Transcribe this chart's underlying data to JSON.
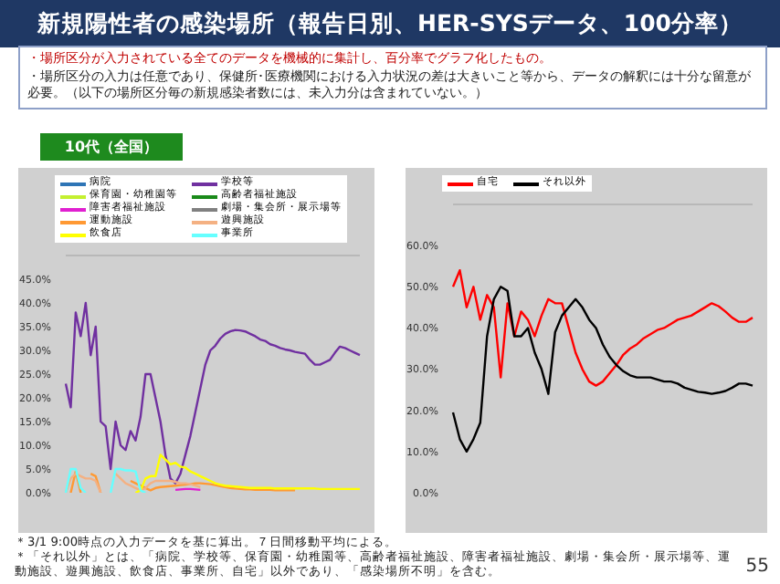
{
  "chart_data": [
    {
      "type": "line",
      "title": "新規陽性者の感染場所（報告日別、HER-SYSデータ、100分率）",
      "subtitle": "10代（全国）",
      "annotations": [
        "・場所区分が入力されている全てのデータを機械的に集計し、百分率でグラフ化したもの。",
        "・場所区分の入力は任意であり、保健所･医療機関における入力状況の差は大きいこと等から、データの解釈には十分な留意が必要。（以下の場所区分毎の新規感染者数には、未入力分は含まれていない。）",
        "＊3/1 9:00時点の入力データを基に算出。７日間移動平均による。",
        "＊「それ以外」とは、「病院、学校等、保育園・幼稚園等、高齢者福祉施設、障害者福祉施設、劇場・集会所・展示場等、運動施設、遊興施設、飲食店、事業所、自宅」以外であり、「感染場所不明」を含む。",
        "55"
      ],
      "categories": [
        null,
        null,
        null,
        null,
        null,
        null,
        null,
        null,
        null,
        null,
        null,
        null,
        null,
        null,
        null,
        null,
        null,
        null,
        null,
        null,
        null,
        null,
        null,
        null,
        null,
        null,
        null,
        null,
        null,
        null,
        null,
        null,
        null,
        null,
        null,
        null,
        null,
        null,
        null,
        null,
        null,
        null,
        null,
        null,
        null,
        null,
        null,
        null,
        null,
        null,
        null,
        null,
        null,
        null,
        null,
        null,
        null,
        null,
        null,
        null
      ],
      "ylim": [
        0,
        50
      ],
      "yticks": [
        {
          "value": 0,
          "label": "0.0%"
        },
        {
          "value": 5,
          "label": "5.0%"
        },
        {
          "value": 10,
          "label": "10.0%"
        },
        {
          "value": 15,
          "label": "15.0%"
        },
        {
          "value": 20,
          "label": "20.0%"
        },
        {
          "value": 25,
          "label": "25.0%"
        },
        {
          "value": 30,
          "label": "30.0%"
        },
        {
          "value": 35,
          "label": "35.0%"
        },
        {
          "value": 40,
          "label": "40.0%"
        },
        {
          "value": 45,
          "label": "45.0%"
        }
      ],
      "legend": "top",
      "marker": "none",
      "series": [
        {
          "name": "病院",
          "color": "#2e75b6",
          "values": [
            null,
            null,
            null,
            null,
            null,
            null,
            null,
            null,
            null,
            null,
            null,
            null,
            null,
            null,
            null,
            null,
            null,
            null,
            null,
            null,
            null,
            null,
            null,
            null,
            null,
            null,
            null,
            null,
            null,
            null,
            null,
            null,
            null,
            null,
            null,
            null,
            null,
            null,
            null,
            null,
            null,
            null,
            null,
            null,
            null,
            null,
            null,
            null,
            null,
            null,
            null,
            null,
            null,
            null,
            null,
            null,
            null,
            null,
            null,
            null
          ]
        },
        {
          "name": "学校等",
          "color": "#7030a0",
          "values": [
            23,
            18,
            38,
            33,
            40,
            29,
            35,
            15,
            14,
            5,
            15,
            10,
            9,
            13,
            11,
            16,
            25,
            25,
            20,
            15,
            8,
            3,
            2,
            4,
            8,
            12,
            17,
            22,
            27,
            30,
            31,
            32.5,
            33.5,
            34,
            34.3,
            34.2,
            34,
            33.5,
            33,
            32.3,
            32,
            31.3,
            31,
            30.5,
            30.2,
            30,
            29.7,
            29.5,
            29.3,
            28,
            27,
            27,
            27.5,
            28,
            29.5,
            30.8,
            30.5,
            30,
            29.5,
            29
          ]
        },
        {
          "name": "保育園・幼稚園等",
          "color": "#c4f030",
          "values": [
            null,
            null,
            null,
            null,
            null,
            null,
            null,
            null,
            null,
            null,
            null,
            null,
            null,
            null,
            null,
            null,
            null,
            null,
            null,
            null,
            null,
            null,
            null,
            null,
            null,
            null,
            null,
            null,
            null,
            null,
            null,
            null,
            null,
            null,
            null,
            null,
            null,
            null,
            null,
            null,
            null,
            null,
            null,
            null,
            null,
            null,
            null,
            null,
            null,
            null,
            null,
            null,
            null,
            null,
            null,
            null,
            null,
            null,
            null,
            null
          ]
        },
        {
          "name": "高齢者福祉施設",
          "color": "#1a8a1a",
          "values": [
            null,
            null,
            null,
            null,
            null,
            null,
            null,
            null,
            null,
            null,
            null,
            null,
            null,
            null,
            null,
            null,
            null,
            null,
            null,
            null,
            null,
            null,
            null,
            null,
            null,
            null,
            null,
            null,
            null,
            null,
            null,
            null,
            null,
            null,
            null,
            null,
            null,
            null,
            null,
            null,
            null,
            null,
            null,
            null,
            null,
            null,
            null,
            null,
            null,
            null,
            null,
            null,
            null,
            null,
            null,
            null,
            null,
            null,
            null,
            null
          ]
        },
        {
          "name": "障害者福祉施設",
          "color": "#e020d0",
          "values": [
            null,
            null,
            null,
            null,
            null,
            null,
            null,
            null,
            null,
            null,
            null,
            null,
            null,
            null,
            null,
            null,
            null,
            null,
            null,
            null,
            null,
            null,
            0.6,
            0.7,
            0.8,
            0.8,
            0.7,
            0.6,
            null,
            null,
            null,
            null,
            null,
            null,
            null,
            null,
            null,
            null,
            null,
            null,
            null,
            null,
            null,
            null,
            null,
            null,
            null,
            null,
            null,
            null,
            null,
            null,
            null,
            null,
            null,
            null,
            null,
            null,
            null,
            null
          ]
        },
        {
          "name": "劇場・集会所・展示場等",
          "color": "#808080",
          "values": [
            null,
            null,
            null,
            null,
            null,
            null,
            null,
            null,
            null,
            null,
            null,
            null,
            null,
            null,
            null,
            null,
            null,
            null,
            null,
            null,
            null,
            null,
            null,
            null,
            null,
            null,
            null,
            null,
            null,
            null,
            null,
            null,
            null,
            null,
            null,
            null,
            null,
            null,
            null,
            null,
            null,
            null,
            null,
            null,
            null,
            null,
            null,
            null,
            null,
            null,
            null,
            null,
            null,
            null,
            null,
            null,
            null,
            null,
            null,
            null
          ]
        },
        {
          "name": "運動施設",
          "color": "#ff9933",
          "values": [
            null,
            0,
            4.5,
            0,
            null,
            4,
            3.5,
            0,
            null,
            null,
            null,
            null,
            null,
            2.5,
            2,
            1.5,
            1,
            0.5,
            1,
            1.2,
            1.3,
            1.4,
            1.5,
            1.6,
            1.7,
            1.8,
            2,
            2,
            1.9,
            1.8,
            1.6,
            1.4,
            1.2,
            1,
            0.9,
            0.8,
            0.7,
            0.7,
            0.6,
            0.6,
            0.6,
            0.6,
            0.5,
            0.5,
            0.5,
            0.5,
            0.5,
            null,
            null,
            null,
            null,
            null,
            null,
            null,
            null,
            null,
            null,
            null,
            null,
            null
          ]
        },
        {
          "name": "遊興施設",
          "color": "#f4b183",
          "values": [
            0,
            3,
            4,
            3.5,
            3,
            3,
            2.5,
            0,
            null,
            null,
            4,
            3,
            2,
            1.5,
            1,
            0.5,
            1,
            2,
            2.5,
            2.5,
            2.5,
            2.5,
            2.3,
            2,
            2,
            1.8,
            1.5,
            1.2,
            null,
            null,
            null,
            null,
            null,
            null,
            null,
            null,
            null,
            null,
            null,
            null,
            null,
            null,
            null,
            null,
            null,
            null,
            null,
            null,
            null,
            null,
            null,
            null,
            null,
            null,
            null,
            null,
            null,
            null,
            null,
            null
          ]
        },
        {
          "name": "飲食店",
          "color": "#ffff00",
          "values": [
            null,
            null,
            null,
            null,
            null,
            null,
            null,
            null,
            null,
            null,
            null,
            null,
            null,
            null,
            0,
            0.5,
            3,
            3.5,
            3.5,
            8,
            7,
            6,
            6.3,
            5.5,
            5.3,
            4.5,
            4,
            3.5,
            3,
            2.5,
            2,
            1.7,
            1.5,
            1.4,
            1.3,
            1.2,
            1.1,
            1,
            1,
            1,
            1,
            1,
            0.9,
            0.9,
            0.9,
            0.9,
            0.9,
            0.9,
            0.9,
            0.9,
            0.9,
            0.8,
            0.8,
            0.8,
            0.8,
            0.8,
            0.8,
            0.8,
            0.8,
            0.8
          ]
        },
        {
          "name": "事業所",
          "color": "#66ffff",
          "values": [
            0,
            5,
            5,
            1,
            0,
            null,
            null,
            null,
            null,
            0,
            5,
            5,
            4.7,
            4.7,
            4.5,
            0.5,
            0,
            null,
            null,
            null,
            null,
            null,
            null,
            null,
            null,
            null,
            null,
            null,
            null,
            null,
            null,
            null,
            null,
            null,
            null,
            null,
            null,
            null,
            null,
            null,
            null,
            null,
            null,
            null,
            null,
            null,
            null,
            null,
            null,
            null,
            null,
            null,
            null,
            null,
            null,
            null,
            null,
            null,
            null,
            null
          ]
        }
      ]
    },
    {
      "type": "line",
      "categories": [
        null,
        null,
        null,
        null,
        null,
        null,
        null,
        null,
        null,
        null,
        null,
        null,
        null,
        null,
        null,
        null,
        null,
        null,
        null,
        null,
        null,
        null,
        null,
        null,
        null,
        null,
        null,
        null,
        null,
        null,
        null,
        null,
        null,
        null,
        null,
        null,
        null,
        null,
        null,
        null,
        null,
        null,
        null,
        null,
        null
      ],
      "ylim": [
        0,
        70
      ],
      "yticks": [
        {
          "value": 0,
          "label": "0.0%"
        },
        {
          "value": 10,
          "label": "10.0%"
        },
        {
          "value": 20,
          "label": "20.0%"
        },
        {
          "value": 30,
          "label": "30.0%"
        },
        {
          "value": 40,
          "label": "40.0%"
        },
        {
          "value": 50,
          "label": "50.0%"
        },
        {
          "value": 60,
          "label": "60.0%"
        }
      ],
      "legend": "top left",
      "marker": "none",
      "series": [
        {
          "name": "自宅",
          "color": "#ff0000",
          "values": [
            50,
            54,
            45,
            50,
            42,
            48,
            45,
            28,
            46,
            38,
            44,
            42,
            38,
            43,
            47,
            46,
            46,
            40,
            34,
            30,
            27,
            26,
            27,
            29,
            31,
            33.5,
            35,
            36,
            37.5,
            38.5,
            39.5,
            40,
            41,
            42,
            42.5,
            43,
            44,
            45,
            46,
            45.3,
            44,
            42.5,
            41.5,
            41.5,
            42.5
          ]
        },
        {
          "name": "それ以外",
          "color": "#000000",
          "values": [
            19.5,
            13,
            10,
            13,
            17,
            38,
            47,
            50,
            49,
            38,
            38,
            40,
            34,
            30,
            24,
            39,
            43,
            45,
            47,
            45,
            42,
            40,
            36,
            33,
            31,
            29.5,
            28.5,
            28,
            28,
            28,
            27.5,
            27,
            27,
            26.5,
            25.5,
            25,
            24.5,
            24.3,
            24,
            24.3,
            24.7,
            25.5,
            26.5,
            26.5,
            26
          ]
        }
      ]
    }
  ]
}
